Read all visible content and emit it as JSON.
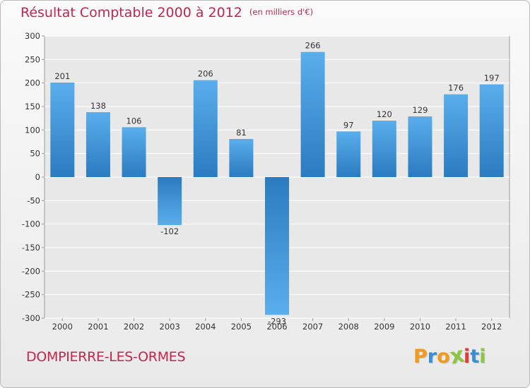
{
  "header": {
    "title": "Résultat Comptable 2000 à 2012",
    "unit": "(en milliers d'€)"
  },
  "footer": {
    "commune": "DOMPIERRE-LES-ORMES",
    "logo_letters": [
      "P",
      "r",
      "o",
      "x",
      "i",
      "t",
      "i"
    ],
    "logo_colors": [
      "#f29a1b",
      "#3a8fd2",
      "#f29a1b",
      "#8bc63f",
      "#e03a3a",
      "#3a8fd2",
      "#8bc63f"
    ]
  },
  "colors": {
    "bar_top": "#5aaeec",
    "bar_bottom": "#2a7bc0",
    "title": "#c0264e"
  },
  "chart_data": {
    "type": "bar",
    "categories": [
      "2000",
      "2001",
      "2002",
      "2003",
      "2004",
      "2005",
      "2006",
      "2007",
      "2008",
      "2009",
      "2010",
      "2011",
      "2012"
    ],
    "values": [
      201,
      138,
      106,
      -102,
      206,
      81,
      -293,
      266,
      97,
      120,
      129,
      176,
      197
    ],
    "value_labels": [
      "201",
      "138",
      "106",
      "-102",
      "206",
      "81",
      "-293",
      "266",
      "97",
      "120",
      "129",
      "176",
      "197"
    ],
    "y_ticks": [
      300,
      250,
      200,
      150,
      100,
      50,
      0,
      -50,
      -100,
      -150,
      -200,
      -250,
      -300
    ],
    "y_tick_labels": [
      "300",
      "250",
      "200",
      "150",
      "100",
      "50",
      "0",
      "-50",
      "-100",
      "-150",
      "-200",
      "-250",
      "-300"
    ],
    "ylim": [
      -300,
      300
    ],
    "title": "Résultat Comptable 2000 à 2012",
    "xlabel": "",
    "ylabel": "",
    "grid": true,
    "legend": "none"
  }
}
